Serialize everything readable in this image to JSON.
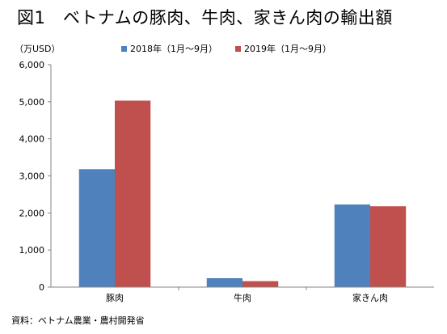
{
  "chart_data": {
    "type": "bar",
    "title": "図1　ベトナムの豚肉、牛肉、家きん肉の輸出額",
    "ylabel": "（万USD）",
    "xlabel": "",
    "categories": [
      "豚肉",
      "牛肉",
      "家きん肉"
    ],
    "series": [
      {
        "name": "2018年（1月～9月）",
        "color": "#4f81bd",
        "values": [
          3180,
          240,
          2230
        ]
      },
      {
        "name": "2019年（1月～9月）",
        "color": "#c0504d",
        "values": [
          5030,
          160,
          2180
        ]
      }
    ],
    "ylim": [
      0,
      6000
    ],
    "yticks": [
      "0",
      "1,000",
      "2,000",
      "3,000",
      "4,000",
      "5,000",
      "6,000"
    ],
    "legend_position": "top",
    "grid": false,
    "source": "資料：ベトナム農業・農村開発省"
  }
}
